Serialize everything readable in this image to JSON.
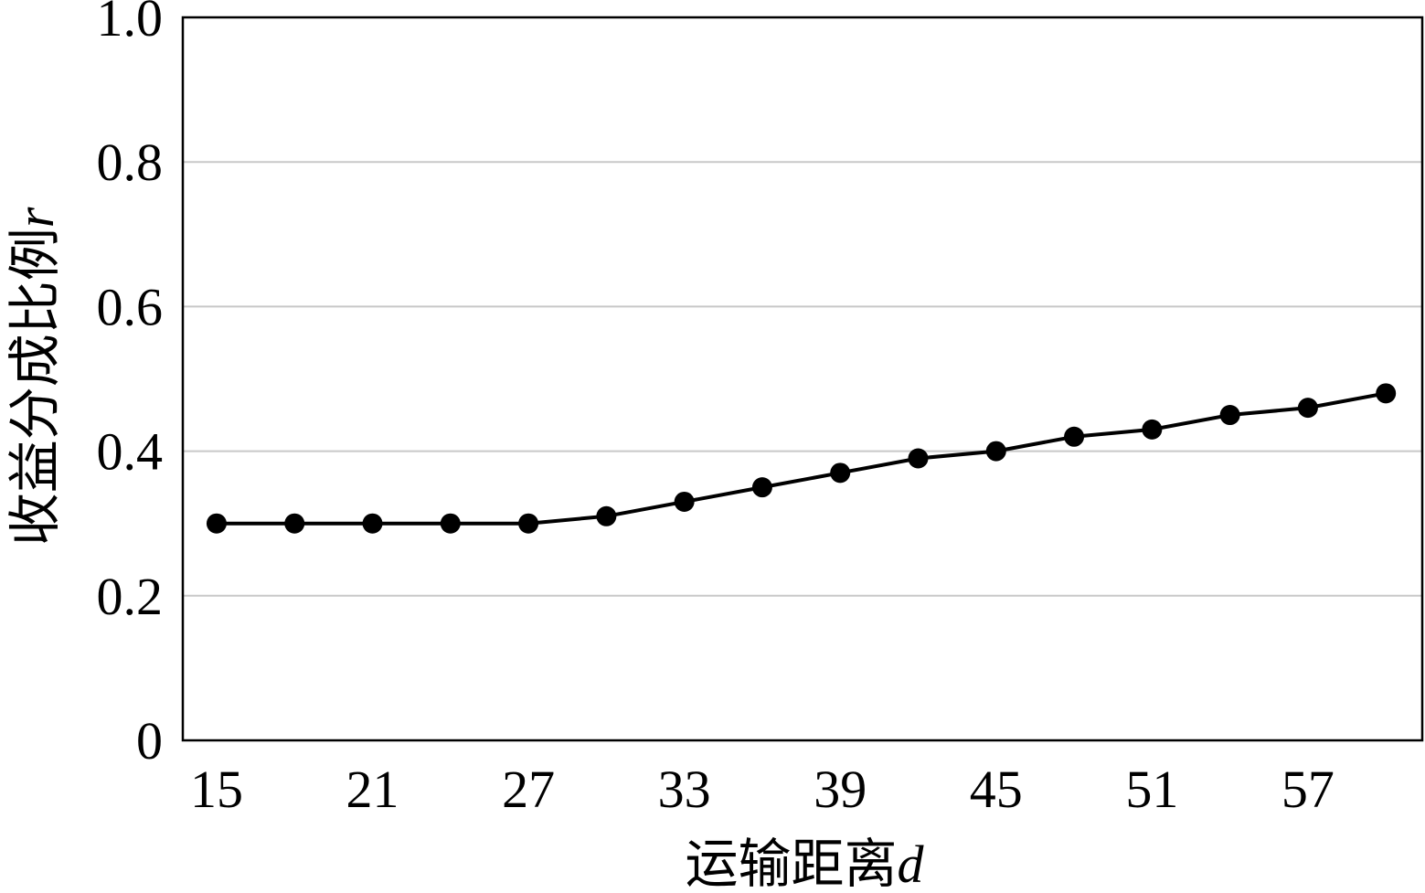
{
  "chart_data": {
    "type": "line",
    "title": "",
    "xlabel": "运输距离",
    "xlabel_var": "d",
    "ylabel": "收益分成比例",
    "ylabel_var": "r",
    "x": [
      15,
      18,
      21,
      24,
      27,
      30,
      33,
      36,
      39,
      42,
      45,
      48,
      51,
      54,
      57,
      60
    ],
    "x_ticks": [
      "15",
      "21",
      "27",
      "33",
      "39",
      "45",
      "51",
      "57"
    ],
    "x_tick_values": [
      15,
      21,
      27,
      33,
      39,
      45,
      51,
      57
    ],
    "y_ticks": [
      "0",
      "0.2",
      "0.4",
      "0.6",
      "0.8",
      "1.0"
    ],
    "y_tick_values": [
      0,
      0.2,
      0.4,
      0.6,
      0.8,
      1.0
    ],
    "ylim": [
      0,
      1.0
    ],
    "xlim": [
      13.7,
      61.4
    ],
    "grid": true,
    "series": [
      {
        "values": [
          0.3,
          0.3,
          0.3,
          0.3,
          0.3,
          0.31,
          0.33,
          0.35,
          0.37,
          0.39,
          0.4,
          0.42,
          0.43,
          0.45,
          0.46,
          0.48
        ]
      }
    ],
    "colors": {
      "line": "#000000",
      "grid": "#c8c8c8",
      "frame": "#000000"
    }
  }
}
